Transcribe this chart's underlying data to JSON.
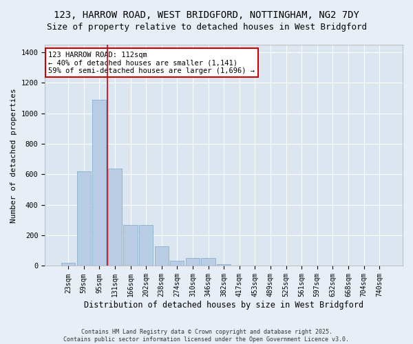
{
  "title_line1": "123, HARROW ROAD, WEST BRIDGFORD, NOTTINGHAM, NG2 7DY",
  "title_line2": "Size of property relative to detached houses in West Bridgford",
  "xlabel": "Distribution of detached houses by size in West Bridgford",
  "ylabel": "Number of detached properties",
  "categories": [
    "23sqm",
    "59sqm",
    "95sqm",
    "131sqm",
    "166sqm",
    "202sqm",
    "238sqm",
    "274sqm",
    "310sqm",
    "346sqm",
    "382sqm",
    "417sqm",
    "453sqm",
    "489sqm",
    "525sqm",
    "561sqm",
    "597sqm",
    "632sqm",
    "668sqm",
    "704sqm",
    "740sqm"
  ],
  "values": [
    22,
    620,
    1090,
    640,
    270,
    270,
    130,
    35,
    50,
    50,
    10,
    0,
    0,
    0,
    0,
    0,
    0,
    0,
    0,
    0,
    0
  ],
  "bar_color": "#b8cce4",
  "bar_edge_color": "#7da7c9",
  "vline_x_idx": 2.5,
  "vline_color": "#cc0000",
  "annotation_text": "123 HARROW ROAD: 112sqm\n← 40% of detached houses are smaller (1,141)\n59% of semi-detached houses are larger (1,696) →",
  "box_color": "#cc0000",
  "footer_line1": "Contains HM Land Registry data © Crown copyright and database right 2025.",
  "footer_line2": "Contains public sector information licensed under the Open Government Licence v3.0.",
  "ylim": [
    0,
    1450
  ],
  "yticks": [
    0,
    200,
    400,
    600,
    800,
    1000,
    1200,
    1400
  ],
  "bg_color": "#e8eef6",
  "plot_bg_color": "#dce6f0",
  "grid_color": "#ffffff",
  "title_fontsize": 10,
  "tick_fontsize": 7,
  "ylabel_fontsize": 8,
  "xlabel_fontsize": 8.5
}
